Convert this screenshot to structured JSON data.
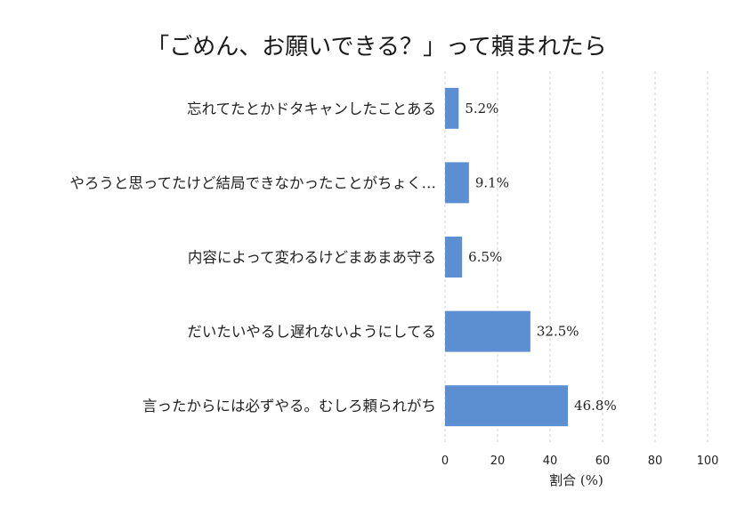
{
  "chart_data": {
    "type": "bar",
    "orientation": "horizontal",
    "title": "「ごめん、お願いできる？」って頼まれたら",
    "xlabel": "割合 (%)",
    "ylabel": "",
    "xlim": [
      0,
      100
    ],
    "xticks": [
      "0",
      "20",
      "40",
      "60",
      "80",
      "100"
    ],
    "grid": "vertical dashed",
    "bar_color": "#5b8fd2",
    "categories": [
      "忘れてたとかドタキャンしたことある",
      "やろうと思ってたけど結局できなかったことがちょく…",
      "内容によって変わるけどまあまあ守る",
      "だいたいやるし遅れないようにしてる",
      "言ったからには必ずやる。むしろ頼られがち"
    ],
    "values": [
      5.2,
      9.1,
      6.5,
      32.5,
      46.8
    ],
    "data_labels": [
      "5.2%",
      "9.1%",
      "6.5%",
      "32.5%",
      "46.8%"
    ]
  }
}
